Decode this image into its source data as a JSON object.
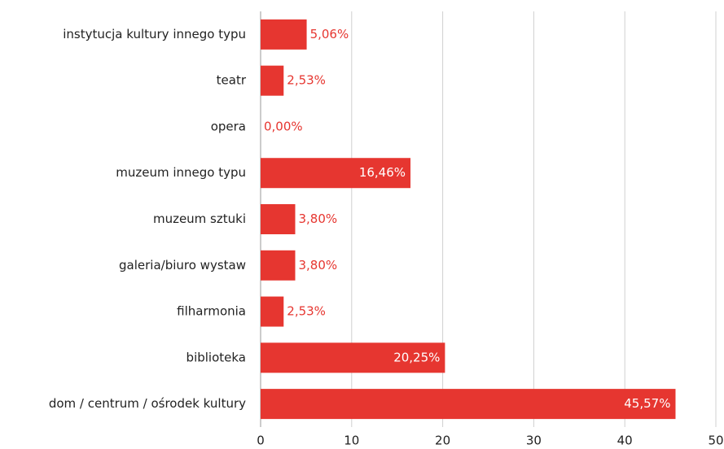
{
  "chart_data": {
    "type": "bar",
    "orientation": "horizontal",
    "categories": [
      "instytucja kultury innego typu",
      "teatr",
      "opera",
      "muzeum innego typu",
      "muzeum sztuki",
      "galeria/biuro wystaw",
      "filharmonia",
      "biblioteka",
      "dom / centrum / ośrodek kultury"
    ],
    "values": [
      5.06,
      2.53,
      0.0,
      16.46,
      3.8,
      3.8,
      2.53,
      20.25,
      45.57
    ],
    "value_labels": [
      "5,06%",
      "2,53%",
      "0,00%",
      "16,46%",
      "3,80%",
      "3,80%",
      "2,53%",
      "20,25%",
      "45,57%"
    ],
    "color": "#e63630",
    "xlim": [
      0,
      50
    ],
    "xticks": [
      0,
      10,
      20,
      30,
      40,
      50
    ],
    "grid": true
  }
}
